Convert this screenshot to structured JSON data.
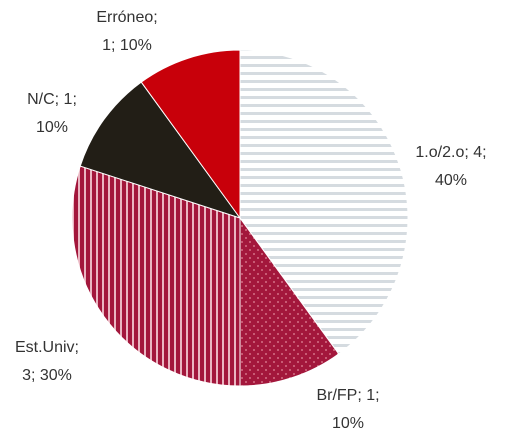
{
  "chart_data": {
    "type": "pie",
    "values": [
      4,
      1,
      3,
      1,
      1
    ],
    "value_labels": [
      [
        "1.o/2.o; 4;",
        "40%"
      ],
      [
        "Br/FP; 1;",
        "10%"
      ],
      [
        "Est.Univ;",
        "3; 30%"
      ],
      [
        "N/C; 1;",
        "10%"
      ],
      [
        "Erróneo;",
        "1; 10%"
      ]
    ],
    "colors": [
      "#ffffff",
      "#a3173c",
      "#a3173c",
      "#221e16",
      "#c8000a"
    ],
    "patterns": [
      "horizontal",
      "dots",
      "vertical",
      "none",
      "none"
    ]
  }
}
